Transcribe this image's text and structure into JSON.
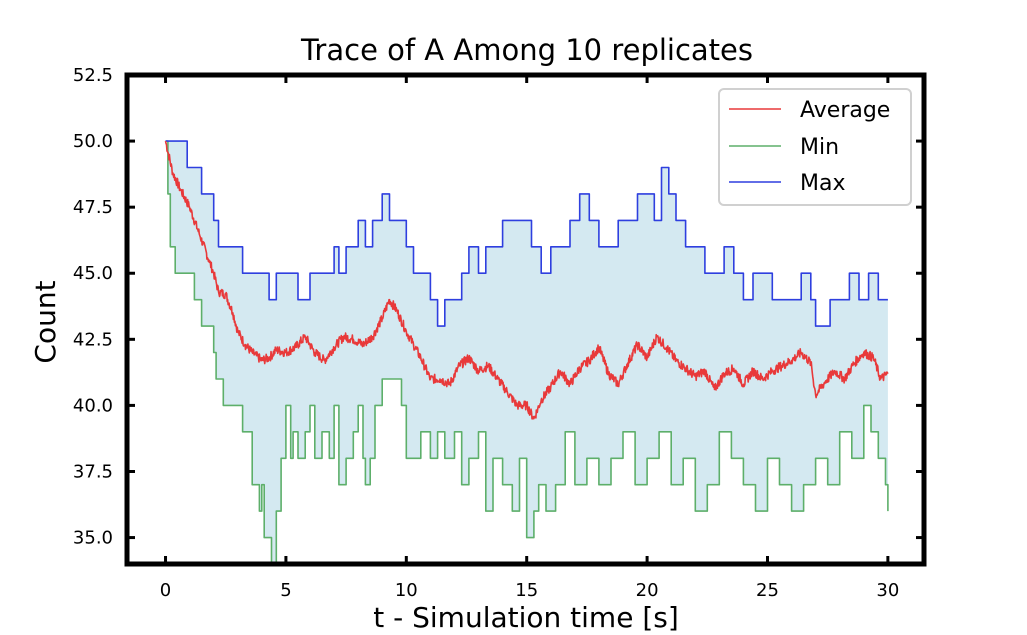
{
  "chart_data": {
    "type": "line",
    "title": "Trace of A Among 10 replicates",
    "xlabel": "t - Simulation time [s]",
    "ylabel": "Count",
    "xlim": [
      -1.6,
      31.5
    ],
    "ylim": [
      34.0,
      52.5
    ],
    "x_ticks": [
      0,
      5,
      10,
      15,
      20,
      25,
      30
    ],
    "x_tick_labels": [
      "0",
      "5",
      "10",
      "15",
      "20",
      "25",
      "30"
    ],
    "y_ticks": [
      35.0,
      37.5,
      40.0,
      42.5,
      45.0,
      47.5,
      50.0,
      52.5
    ],
    "y_tick_labels": [
      "35.0",
      "37.5",
      "40.0",
      "42.5",
      "45.0",
      "47.5",
      "50.0",
      "52.5"
    ],
    "grid": false,
    "legend_position": "top-right",
    "fill_between": {
      "lower": "Min",
      "upper": "Max",
      "color": "#d4e9f1"
    },
    "series": [
      {
        "name": "Average",
        "color": "#e8393a",
        "x": [
          0,
          0.3,
          0.6,
          1.0,
          1.4,
          1.8,
          2.0,
          2.2,
          2.5,
          2.8,
          3.0,
          3.3,
          3.6,
          4.0,
          4.3,
          4.6,
          5.0,
          5.4,
          5.8,
          6.2,
          6.6,
          7.0,
          7.4,
          7.8,
          8.2,
          8.6,
          9.0,
          9.3,
          9.6,
          10.0,
          10.3,
          10.6,
          11.0,
          11.4,
          11.8,
          12.2,
          12.6,
          13.0,
          13.4,
          13.8,
          14.2,
          14.6,
          15.0,
          15.3,
          15.6,
          16.0,
          16.4,
          16.8,
          17.2,
          17.6,
          18.0,
          18.4,
          18.8,
          19.2,
          19.6,
          20.0,
          20.4,
          20.8,
          21.2,
          21.6,
          22.0,
          22.4,
          22.8,
          23.2,
          23.6,
          24.0,
          24.4,
          24.8,
          25.2,
          25.6,
          26.0,
          26.4,
          26.8,
          27.0,
          27.4,
          27.8,
          28.2,
          28.6,
          29.0,
          29.4,
          29.7,
          30.0
        ],
        "y": [
          50.0,
          48.8,
          48.2,
          47.5,
          46.5,
          45.5,
          45.0,
          44.3,
          44.2,
          43.5,
          42.8,
          42.3,
          42.0,
          41.7,
          41.8,
          42.1,
          42.0,
          42.2,
          42.6,
          42.0,
          41.7,
          42.2,
          42.6,
          42.5,
          42.3,
          42.6,
          43.3,
          44.0,
          43.6,
          42.8,
          42.3,
          41.8,
          41.0,
          41.0,
          40.8,
          41.5,
          41.8,
          41.3,
          41.5,
          41.0,
          40.5,
          40.0,
          40.0,
          39.5,
          40.2,
          40.7,
          41.3,
          40.8,
          41.4,
          41.7,
          42.2,
          41.2,
          40.8,
          41.6,
          42.3,
          41.8,
          42.6,
          42.2,
          41.7,
          41.4,
          41.1,
          41.3,
          40.6,
          41.2,
          41.4,
          40.8,
          41.3,
          41.0,
          41.3,
          41.5,
          41.7,
          42.0,
          41.6,
          40.4,
          40.9,
          41.3,
          41.0,
          41.6,
          42.0,
          41.8,
          41.0,
          41.2
        ]
      },
      {
        "name": "Min",
        "color": "#5daf6a",
        "x": [
          0,
          0.1,
          0.2,
          0.4,
          0.5,
          1.0,
          1.2,
          1.5,
          1.7,
          2.0,
          2.1,
          2.2,
          2.4,
          2.5,
          2.7,
          3.0,
          3.2,
          3.5,
          3.6,
          3.8,
          3.9,
          4.0,
          4.1,
          4.3,
          4.4,
          4.6,
          4.8,
          5.0,
          5.2,
          5.3,
          5.5,
          5.8,
          6.0,
          6.2,
          6.5,
          6.8,
          7.0,
          7.2,
          7.5,
          7.8,
          8.0,
          8.2,
          8.3,
          8.5,
          8.7,
          9.0,
          9.5,
          9.8,
          10.0,
          10.3,
          10.6,
          11.0,
          11.3,
          11.6,
          12.0,
          12.3,
          12.6,
          13.0,
          13.3,
          13.6,
          14.0,
          14.4,
          14.7,
          15.0,
          15.3,
          15.5,
          15.8,
          16.2,
          16.6,
          17.0,
          17.5,
          18.0,
          18.5,
          19.0,
          19.5,
          20.0,
          20.5,
          21.0,
          21.5,
          22.0,
          22.5,
          23.0,
          23.5,
          24.0,
          24.5,
          25.0,
          25.5,
          26.0,
          26.5,
          27.0,
          27.5,
          28.0,
          28.5,
          29.0,
          29.3,
          29.6,
          29.9,
          30.0
        ],
        "y": [
          50.0,
          48.0,
          46.0,
          45.0,
          45.0,
          45.0,
          44.0,
          43.0,
          43.0,
          42.0,
          41.0,
          41.0,
          40.0,
          40.0,
          40.0,
          40.0,
          39.0,
          39.0,
          37.0,
          37.0,
          36.0,
          37.0,
          35.0,
          35.0,
          34.0,
          36.0,
          38.0,
          40.0,
          38.0,
          39.0,
          38.0,
          39.0,
          40.0,
          38.0,
          39.0,
          38.0,
          40.0,
          37.0,
          38.0,
          39.0,
          40.0,
          38.0,
          37.0,
          38.0,
          40.0,
          41.0,
          41.0,
          40.0,
          38.0,
          38.0,
          39.0,
          38.0,
          39.0,
          38.0,
          39.0,
          37.0,
          38.0,
          39.0,
          36.0,
          38.0,
          37.0,
          36.0,
          38.0,
          35.0,
          36.0,
          37.0,
          36.0,
          37.0,
          39.0,
          37.0,
          38.0,
          37.0,
          38.0,
          39.0,
          37.0,
          38.0,
          39.0,
          37.0,
          38.0,
          36.0,
          37.0,
          39.0,
          38.0,
          37.0,
          36.0,
          38.0,
          37.0,
          36.0,
          37.0,
          38.0,
          37.0,
          39.0,
          38.0,
          40.0,
          39.0,
          38.0,
          37.0,
          36.0
        ]
      },
      {
        "name": "Max",
        "color": "#2e3fdf",
        "x": [
          0,
          0.6,
          0.9,
          1.0,
          1.5,
          1.8,
          2.0,
          2.2,
          2.5,
          2.9,
          3.2,
          3.6,
          4.0,
          4.3,
          4.6,
          4.9,
          5.2,
          5.5,
          5.8,
          6.0,
          6.3,
          6.6,
          7.0,
          7.2,
          7.5,
          7.8,
          8.0,
          8.3,
          8.6,
          9.0,
          9.3,
          9.6,
          10.0,
          10.3,
          10.6,
          11.0,
          11.3,
          11.6,
          12.0,
          12.3,
          12.6,
          13.0,
          13.3,
          13.6,
          14.0,
          14.4,
          14.8,
          15.2,
          15.6,
          16.0,
          16.4,
          16.8,
          17.2,
          17.6,
          18.0,
          18.4,
          18.8,
          19.2,
          19.6,
          20.0,
          20.3,
          20.6,
          20.9,
          21.2,
          21.6,
          22.0,
          22.4,
          22.8,
          23.2,
          23.6,
          24.0,
          24.4,
          24.8,
          25.2,
          25.6,
          26.0,
          26.4,
          26.8,
          27.0,
          27.3,
          27.6,
          28.0,
          28.4,
          28.8,
          29.2,
          29.6,
          30.0
        ],
        "y": [
          50.0,
          50.0,
          49.0,
          49.0,
          48.0,
          48.0,
          47.0,
          46.0,
          46.0,
          46.0,
          45.0,
          45.0,
          45.0,
          44.0,
          45.0,
          45.0,
          45.0,
          44.0,
          44.0,
          45.0,
          45.0,
          45.0,
          46.0,
          45.0,
          46.0,
          46.0,
          47.0,
          46.0,
          47.0,
          48.0,
          47.0,
          47.0,
          46.0,
          45.0,
          45.0,
          44.0,
          43.0,
          44.0,
          44.0,
          45.0,
          46.0,
          45.0,
          46.0,
          46.0,
          47.0,
          47.0,
          47.0,
          46.0,
          45.0,
          46.0,
          46.0,
          47.0,
          48.0,
          47.0,
          46.0,
          46.0,
          47.0,
          47.0,
          48.0,
          48.0,
          47.0,
          49.0,
          48.0,
          47.0,
          46.0,
          46.0,
          45.0,
          45.0,
          46.0,
          45.0,
          44.0,
          45.0,
          45.0,
          44.0,
          44.0,
          44.0,
          45.0,
          44.0,
          43.0,
          43.0,
          44.0,
          44.0,
          45.0,
          44.0,
          45.0,
          44.0,
          44.0
        ]
      }
    ]
  }
}
